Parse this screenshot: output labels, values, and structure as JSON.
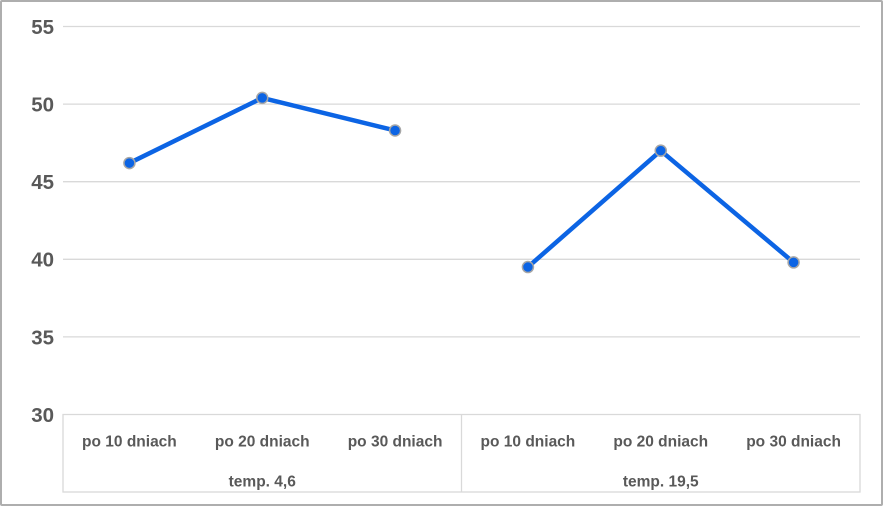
{
  "chart_data": {
    "type": "line",
    "title": "",
    "xlabel": "",
    "ylabel": "",
    "legend": "none",
    "grid": "horizontal",
    "y_axis": {
      "min": 30,
      "max": 55,
      "step": 5,
      "ticks": [
        55,
        50,
        45,
        40,
        35,
        30
      ]
    },
    "groups": [
      {
        "label": "temp. 4,6",
        "categories": [
          "po 10 dniach",
          "po 20 dniach",
          "po 30 dniach"
        ],
        "values": [
          46.2,
          50.4,
          48.3
        ]
      },
      {
        "label": "temp. 19,5",
        "categories": [
          "po 10 dniach",
          "po 20 dniach",
          "po 30 dniach"
        ],
        "values": [
          39.5,
          47.0,
          39.8
        ]
      }
    ],
    "colors": {
      "line": "#0c64e4",
      "marker_fill": "#0c64e4",
      "marker_outline": "#a6a6a6",
      "gridline": "#d9d9d9",
      "axis_box_border": "#d9d9d9",
      "axis_text": "#595959",
      "frame_border": "#aeaeae",
      "background": "#ffffff"
    }
  }
}
